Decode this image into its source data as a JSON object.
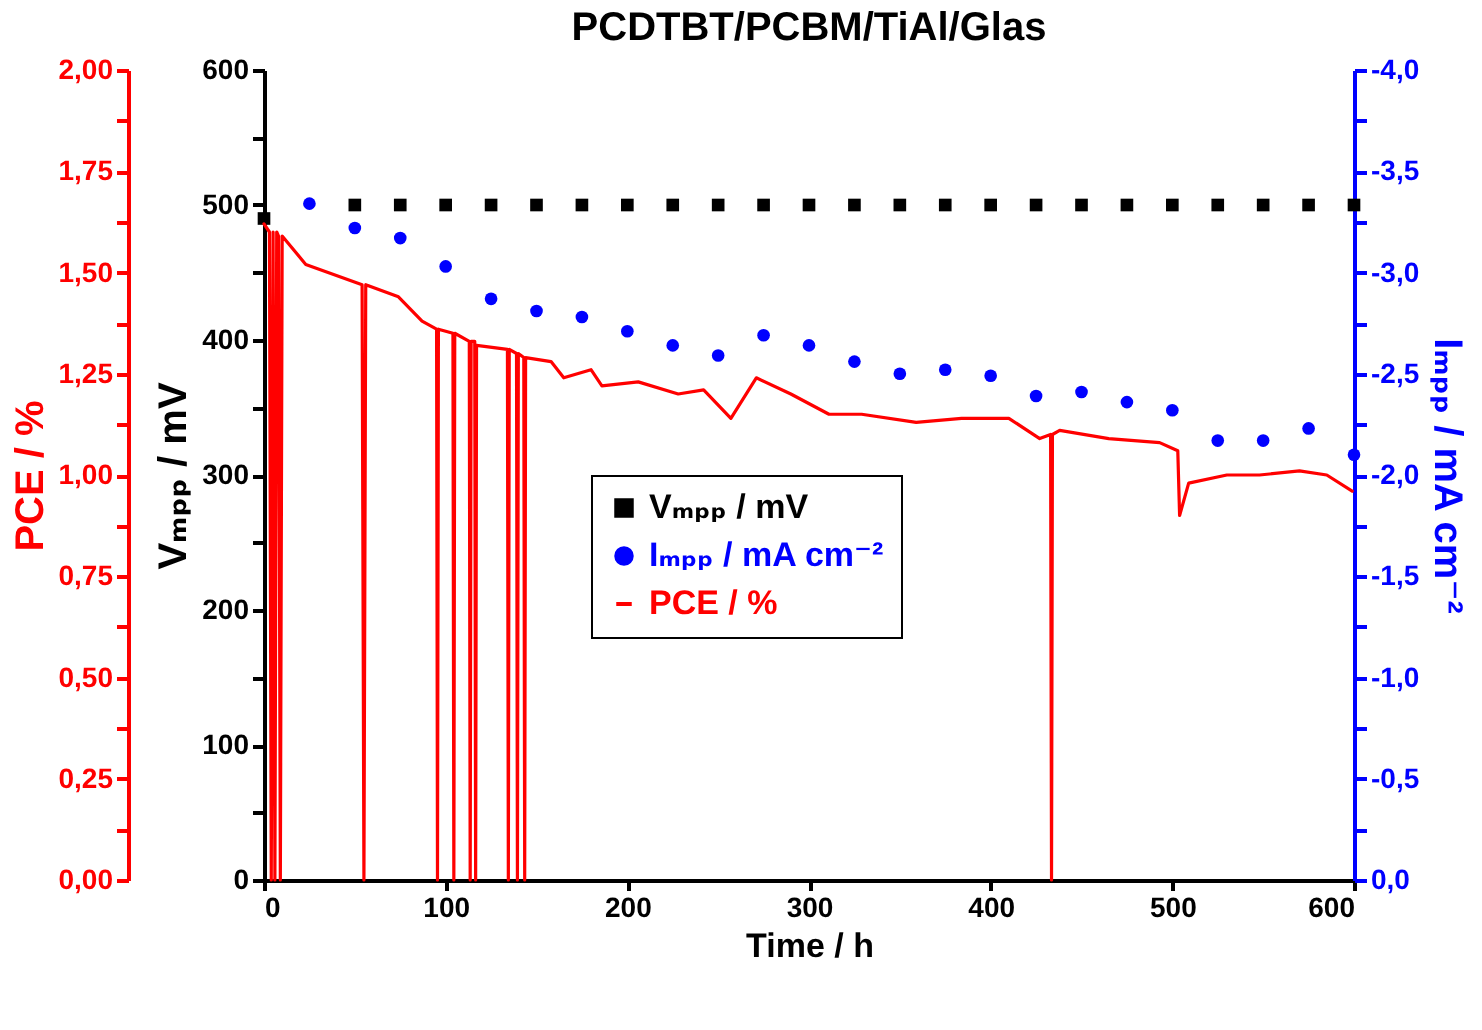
{
  "chart_data": {
    "type": "scatter",
    "title": "PCDTBT/PCBM/TiAl/Glas",
    "xlabel": "Time / h",
    "ylabel": "Vₘₚₚ / mV",
    "y2label": "Iₘₚₚ / mA cm⁻²",
    "y3label": "PCE / %",
    "xlim": [
      0,
      600
    ],
    "xticks": [
      0,
      100,
      200,
      300,
      400,
      500,
      600
    ],
    "ylim": [
      0,
      600
    ],
    "yticks": [
      0,
      {
        "value": 50,
        "label": null
      },
      100,
      {
        "value": 150,
        "label": null
      },
      200,
      {
        "value": 250,
        "label": null
      },
      300,
      {
        "value": 350,
        "label": null
      },
      400,
      {
        "value": 450,
        "label": null
      },
      500,
      {
        "value": 550,
        "label": null
      },
      600
    ],
    "y2lim": [
      0,
      -4
    ],
    "y2ticks": [
      {
        "value": 0,
        "label": "0,0"
      },
      {
        "value": -0.25,
        "label": null
      },
      {
        "value": -0.5,
        "label": "-0,5"
      },
      {
        "value": -0.75,
        "label": null
      },
      {
        "value": -1,
        "label": "-1,0"
      },
      {
        "value": -1.25,
        "label": null
      },
      {
        "value": -1.5,
        "label": "-1,5"
      },
      {
        "value": -1.75,
        "label": null
      },
      {
        "value": -2,
        "label": "-2,0"
      },
      {
        "value": -2.25,
        "label": null
      },
      {
        "value": -2.5,
        "label": "-2,5"
      },
      {
        "value": -2.75,
        "label": null
      },
      {
        "value": -3,
        "label": "-3,0"
      },
      {
        "value": -3.25,
        "label": null
      },
      {
        "value": -3.5,
        "label": "-3,5"
      },
      {
        "value": -3.75,
        "label": null
      },
      {
        "value": -4,
        "label": "-4,0"
      }
    ],
    "y3lim": [
      0,
      2
    ],
    "y3ticks": [
      {
        "value": 0,
        "label": "0,00"
      },
      {
        "value": 0.125,
        "label": null
      },
      {
        "value": 0.25,
        "label": "0,25"
      },
      {
        "value": 0.375,
        "label": null
      },
      {
        "value": 0.5,
        "label": "0,50"
      },
      {
        "value": 0.625,
        "label": null
      },
      {
        "value": 0.75,
        "label": "0,75"
      },
      {
        "value": 0.875,
        "label": null
      },
      {
        "value": 1,
        "label": "1,00"
      },
      {
        "value": 1.125,
        "label": null
      },
      {
        "value": 1.25,
        "label": "1,25"
      },
      {
        "value": 1.375,
        "label": null
      },
      {
        "value": 1.5,
        "label": "1,50"
      },
      {
        "value": 1.625,
        "label": null
      },
      {
        "value": 1.75,
        "label": "1,75"
      },
      {
        "value": 1.875,
        "label": null
      },
      {
        "value": 2,
        "label": "2,00"
      }
    ],
    "legend": "center",
    "series": [
      {
        "name": "Vₘₚₚ / mV",
        "type": "scatter",
        "marker": "square",
        "color": "#000000",
        "x": [
          0,
          25,
          50,
          75,
          100,
          125,
          150,
          175,
          200,
          225,
          250,
          275,
          300,
          325,
          350,
          375,
          400,
          425,
          450,
          475,
          500,
          525,
          550,
          575,
          600
        ],
        "values": [
          490,
          null,
          500,
          500,
          500,
          500,
          500,
          500,
          500,
          500,
          500,
          500,
          500,
          500,
          500,
          500,
          500,
          500,
          500,
          500,
          500,
          500,
          500,
          500,
          500
        ]
      },
      {
        "name": "Iₘₚₚ / mA cm⁻²",
        "type": "scatter",
        "marker": "circle",
        "color": "#0000ff",
        "axis": "y2",
        "x": [
          25,
          50,
          75,
          100,
          125,
          150,
          175,
          200,
          225,
          250,
          275,
          300,
          325,
          350,
          375,
          400,
          425,
          450,
          475,
          500,
          525,
          550,
          575,
          600
        ],
        "values": [
          -3.34,
          -3.22,
          -3.17,
          -3.03,
          -2.87,
          -2.81,
          -2.78,
          -2.71,
          -2.64,
          -2.59,
          -2.69,
          -2.64,
          -2.56,
          -2.5,
          -2.52,
          -2.49,
          -2.39,
          -2.41,
          -2.36,
          -2.32,
          -2.17,
          -2.17,
          -2.23,
          -2.1
        ]
      },
      {
        "name": "PCE / %",
        "type": "line",
        "marker": "none",
        "color": "#ff0000",
        "axis": "y3",
        "x": [
          0,
          3,
          4,
          5,
          6,
          7,
          8,
          9,
          10,
          23,
          54,
          55,
          56,
          74,
          87,
          95,
          95.5,
          96,
          104,
          104.5,
          105,
          113,
          113.5,
          114,
          116,
          116.5,
          117,
          134,
          134.5,
          135,
          139,
          139.5,
          140,
          143,
          143.5,
          144,
          158,
          165,
          180,
          186,
          206,
          228,
          242,
          257,
          271,
          290,
          311,
          329,
          359,
          384,
          410,
          427,
          433,
          433.5,
          434,
          438,
          465,
          493,
          503,
          504,
          509,
          530,
          548,
          570,
          585,
          599
        ],
        "values": [
          1.62,
          1.6,
          0,
          1.6,
          0,
          1.6,
          1.59,
          0,
          1.59,
          1.52,
          1.47,
          0,
          1.47,
          1.44,
          1.38,
          1.36,
          0,
          1.36,
          1.35,
          0,
          1.35,
          1.33,
          0,
          1.33,
          1.33,
          0,
          1.32,
          1.31,
          0,
          1.31,
          1.3,
          0,
          1.3,
          1.29,
          0,
          1.29,
          1.28,
          1.24,
          1.26,
          1.22,
          1.23,
          1.2,
          1.21,
          1.14,
          1.24,
          1.2,
          1.15,
          1.15,
          1.13,
          1.14,
          1.14,
          1.09,
          1.1,
          0,
          1.1,
          1.11,
          1.09,
          1.08,
          1.06,
          0.9,
          0.98,
          1,
          1,
          1.01,
          1,
          0.96
        ]
      }
    ]
  }
}
